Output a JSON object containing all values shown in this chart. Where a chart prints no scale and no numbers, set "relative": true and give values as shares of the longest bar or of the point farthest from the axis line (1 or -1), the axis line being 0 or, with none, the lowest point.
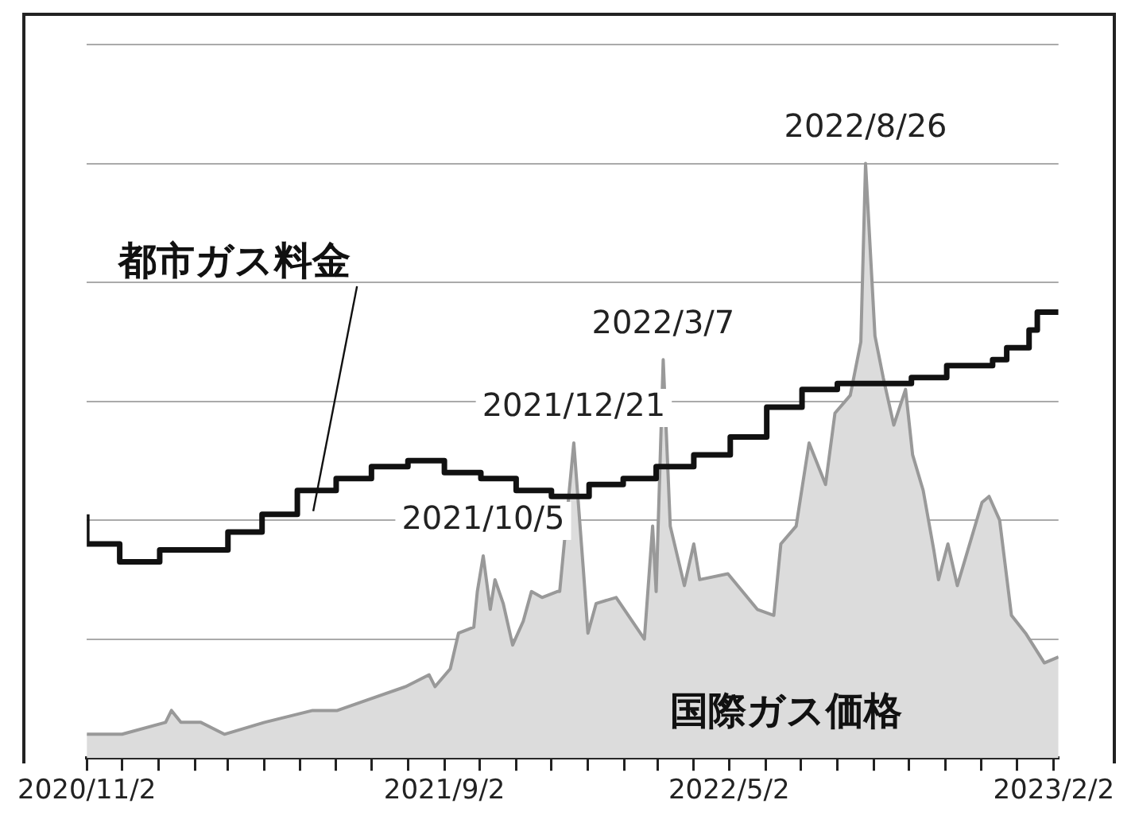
{
  "chart_data": {
    "type": "area",
    "relative": true,
    "grid": "y",
    "legend": false,
    "xlim": [
      "2020-11-02",
      "2023-02-06"
    ],
    "xticks": [
      {
        "value": "2020-11-02",
        "label": "2020/11/2"
      },
      {
        "value": "2020-12-02",
        "label": null
      },
      {
        "value": "2021-01-02",
        "label": null
      },
      {
        "value": "2021-02-02",
        "label": null
      },
      {
        "value": "2021-03-02",
        "label": null
      },
      {
        "value": "2021-04-02",
        "label": null
      },
      {
        "value": "2021-05-02",
        "label": null
      },
      {
        "value": "2021-06-02",
        "label": null
      },
      {
        "value": "2021-07-02",
        "label": null
      },
      {
        "value": "2021-08-02",
        "label": null
      },
      {
        "value": "2021-09-02",
        "label": "2021/9/2"
      },
      {
        "value": "2021-10-02",
        "label": null
      },
      {
        "value": "2021-11-02",
        "label": null
      },
      {
        "value": "2021-12-02",
        "label": null
      },
      {
        "value": "2022-01-02",
        "label": null
      },
      {
        "value": "2022-02-02",
        "label": null
      },
      {
        "value": "2022-03-02",
        "label": null
      },
      {
        "value": "2022-04-02",
        "label": null
      },
      {
        "value": "2022-05-02",
        "label": "2022/5/2"
      },
      {
        "value": "2022-06-02",
        "label": null
      },
      {
        "value": "2022-07-02",
        "label": null
      },
      {
        "value": "2022-08-02",
        "label": null
      },
      {
        "value": "2022-09-02",
        "label": null
      },
      {
        "value": "2022-10-02",
        "label": null
      },
      {
        "value": "2022-11-02",
        "label": null
      },
      {
        "value": "2022-12-02",
        "label": null
      },
      {
        "value": "2023-01-02",
        "label": null
      },
      {
        "value": "2023-02-02",
        "label": "2023/2/2"
      }
    ],
    "series": [
      {
        "name": "国際ガス価格",
        "type": "area",
        "color": "#999999",
        "x": [
          "2020-11-02",
          "2020-12-02",
          "2021-01-08",
          "2021-01-13",
          "2021-01-21",
          "2021-02-07",
          "2021-02-27",
          "2021-04-02",
          "2021-05-13",
          "2021-06-03",
          "2021-07-02",
          "2021-07-31",
          "2021-08-20",
          "2021-08-25",
          "2021-09-07",
          "2021-09-14",
          "2021-09-27",
          "2021-09-30",
          "2021-10-05",
          "2021-10-11",
          "2021-10-15",
          "2021-10-22",
          "2021-10-30",
          "2021-11-08",
          "2021-11-15",
          "2021-11-24",
          "2021-12-07",
          "2021-12-09",
          "2021-12-21",
          "2021-12-29",
          "2022-01-02",
          "2022-01-09",
          "2022-01-26",
          "2022-02-19",
          "2022-02-26",
          "2022-03-01",
          "2022-03-07",
          "2022-03-13",
          "2022-03-25",
          "2022-04-02",
          "2022-04-07",
          "2022-05-01",
          "2022-05-26",
          "2022-06-09",
          "2022-06-15",
          "2022-06-28",
          "2022-07-09",
          "2022-07-23",
          "2022-07-31",
          "2022-08-13",
          "2022-08-22",
          "2022-08-26",
          "2022-09-03",
          "2022-09-10",
          "2022-09-19",
          "2022-09-29",
          "2022-10-05",
          "2022-10-14",
          "2022-10-23",
          "2022-10-27",
          "2022-11-04",
          "2022-11-12",
          "2022-11-24",
          "2022-12-03",
          "2022-12-09",
          "2022-12-18",
          "2022-12-28",
          "2023-01-09",
          "2023-01-25",
          "2023-02-06"
        ],
        "values": [
          0.04,
          0.04,
          0.06,
          0.08,
          0.06,
          0.06,
          0.04,
          0.06,
          0.08,
          0.08,
          0.1,
          0.12,
          0.14,
          0.12,
          0.15,
          0.21,
          0.22,
          0.28,
          0.34,
          0.25,
          0.3,
          0.26,
          0.19,
          0.23,
          0.28,
          0.27,
          0.28,
          0.28,
          0.53,
          0.32,
          0.21,
          0.26,
          0.27,
          0.2,
          0.39,
          0.28,
          0.67,
          0.39,
          0.29,
          0.36,
          0.3,
          0.31,
          0.25,
          0.24,
          0.36,
          0.39,
          0.53,
          0.46,
          0.58,
          0.61,
          0.7,
          1,
          0.71,
          0.64,
          0.56,
          0.62,
          0.51,
          0.45,
          0.35,
          0.3,
          0.36,
          0.29,
          0.37,
          0.43,
          0.44,
          0.4,
          0.24,
          0.21,
          0.16,
          0.17
        ]
      },
      {
        "name": "都市ガス料金",
        "type": "step",
        "color": "#111111",
        "x": [
          "2020-11-02",
          "2020-11-30",
          "2021-01-03",
          "2021-01-31",
          "2021-03-02",
          "2021-03-31",
          "2021-04-30",
          "2021-06-02",
          "2021-07-02",
          "2021-08-02",
          "2021-09-02",
          "2021-10-03",
          "2021-11-02",
          "2021-12-02",
          "2022-01-03",
          "2022-02-01",
          "2022-03-01",
          "2022-04-02",
          "2022-05-03",
          "2022-06-03",
          "2022-07-03",
          "2022-08-02",
          "2022-10-04",
          "2022-11-03",
          "2022-12-12",
          "2022-12-24",
          "2023-01-12",
          "2023-01-19",
          "2023-01-30",
          "2023-02-06"
        ],
        "values": [
          0.41,
          0.36,
          0.33,
          0.35,
          0.35,
          0.38,
          0.41,
          0.45,
          0.47,
          0.49,
          0.5,
          0.48,
          0.47,
          0.45,
          0.44,
          0.46,
          0.47,
          0.49,
          0.51,
          0.54,
          0.59,
          0.62,
          0.63,
          0.64,
          0.66,
          0.67,
          0.69,
          0.72,
          0.75,
          0.75
        ]
      }
    ],
    "annotations": [
      {
        "text": "2021/10/5",
        "x": "2021-10-05",
        "y": 0.34
      },
      {
        "text": "2021/12/21",
        "x": "2021-12-21",
        "y": 0.53
      },
      {
        "text": "2022/3/7",
        "x": "2022-03-07",
        "y": 0.67
      },
      {
        "text": "2022/8/26",
        "x": "2022-08-26",
        "y": 1
      }
    ]
  }
}
